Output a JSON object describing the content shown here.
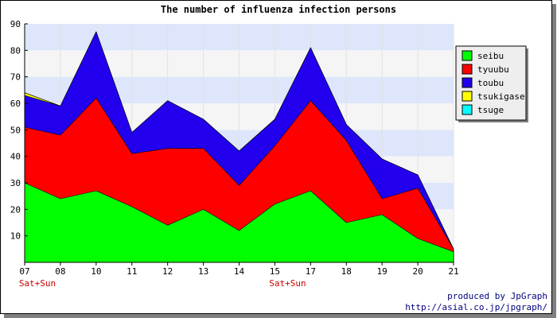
{
  "credits": {
    "line1": "produced by JpGraph",
    "line2": "http://asial.co.jp/jpgraph/"
  },
  "colors": {
    "band_light": "#f5f5f5",
    "band_blue": "#dde6fb",
    "weekend_label": "#cc0000"
  },
  "chart_data": {
    "type": "area",
    "stacked": true,
    "title": "The number of influenza infection persons",
    "categories": [
      "07",
      "08",
      "10",
      "11",
      "12",
      "13",
      "14",
      "15",
      "17",
      "18",
      "19",
      "20",
      "21"
    ],
    "weekend_labels": [
      {
        "category": "07",
        "text": "Sat+Sun"
      },
      {
        "category": "15",
        "text": "Sat+Sun"
      }
    ],
    "ylim": [
      0,
      90
    ],
    "yticks": [
      10,
      20,
      30,
      40,
      50,
      60,
      70,
      80,
      90
    ],
    "legend_position": "right",
    "series": [
      {
        "name": "seibu",
        "color": "#00ff00",
        "values": [
          30,
          24,
          27,
          21,
          14,
          20,
          12,
          22,
          27,
          15,
          18,
          9,
          4
        ]
      },
      {
        "name": "tyuubu",
        "color": "#ff0000",
        "values": [
          21,
          24,
          35,
          20,
          29,
          23,
          17,
          22,
          34,
          31,
          6,
          19,
          1
        ]
      },
      {
        "name": "toubu",
        "color": "#2200ee",
        "values": [
          12,
          11,
          25,
          8,
          18,
          11,
          13,
          10,
          20,
          6,
          15,
          5,
          0
        ]
      },
      {
        "name": "tsukigase",
        "color": "#ffff00",
        "values": [
          1,
          0,
          0,
          0,
          0,
          0,
          0,
          0,
          0,
          0,
          0,
          0,
          0
        ]
      },
      {
        "name": "tsuge",
        "color": "#00ffff",
        "values": [
          0,
          0,
          0,
          0,
          0,
          0,
          0,
          0,
          0,
          0,
          0,
          0,
          0
        ]
      }
    ]
  }
}
